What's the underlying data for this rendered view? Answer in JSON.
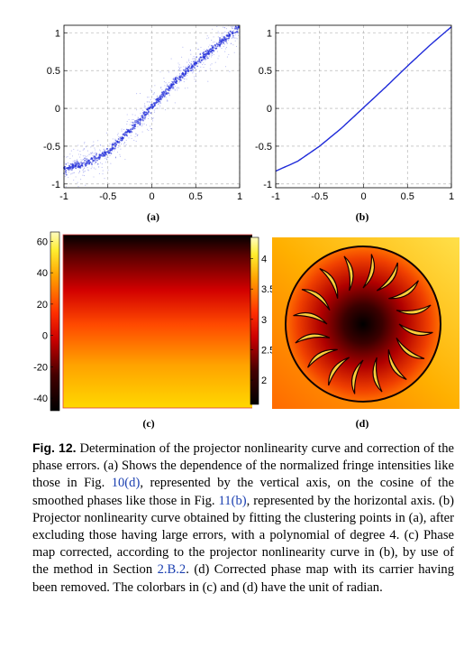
{
  "figure": {
    "panels": {
      "a": {
        "label": "(a)"
      },
      "b": {
        "label": "(b)"
      },
      "c": {
        "label": "(c)"
      },
      "d": {
        "label": "(d)"
      }
    },
    "caption": {
      "fig_label": "Fig. 12.",
      "t1": " Determination of the projector nonlinearity curve and correction of the phase errors. (a) Shows the dependence of the normalized fringe intensities like those in Fig. ",
      "ref1": "10(d)",
      "t2": ", represented by the vertical axis, on the cosine of the smoothed phases like those in Fig. ",
      "ref2": "11(b)",
      "t3": ", represented by the horizontal axis. (b) Projector nonlinearity curve obtained by fitting the clustering points in (a), after excluding those having large errors, with a polynomial of degree 4. (c) Phase map corrected, according to the projector nonlinearity curve in (b), by use of the method in Section ",
      "ref3": "2.B.2",
      "t4": ". (d) Corrected phase map with its carrier having been removed. The colorbars in (c) and (d) have the unit of radian."
    }
  },
  "chart_data": [
    {
      "type": "scatter",
      "x_ticks": [
        "-1",
        "-0.5",
        "0",
        "0.5",
        "1"
      ],
      "y_ticks": [
        "1",
        "0.5",
        "0",
        "-0.5",
        "-1"
      ],
      "xlim": [
        -1,
        1
      ],
      "ylim": [
        -1.05,
        1.1
      ],
      "grid": true,
      "color": "#1f2bd9",
      "series": [
        {
          "x": [
            -1,
            -0.75,
            -0.5,
            -0.25,
            0,
            0.25,
            0.5,
            0.75,
            1
          ],
          "y": [
            -0.8,
            -0.73,
            -0.57,
            -0.3,
            0.02,
            0.33,
            0.6,
            0.85,
            1.08
          ]
        }
      ]
    },
    {
      "type": "line",
      "x_ticks": [
        "-1",
        "-0.5",
        "0",
        "0.5",
        "1"
      ],
      "y_ticks": [
        "1",
        "0.5",
        "0",
        "-0.5",
        "-1"
      ],
      "xlim": [
        -1,
        1
      ],
      "ylim": [
        -1.05,
        1.1
      ],
      "grid": true,
      "color": "#1f2bd9",
      "series": [
        {
          "x": [
            -1,
            -0.75,
            -0.5,
            -0.25,
            0,
            0.25,
            0.5,
            0.75,
            1
          ],
          "y": [
            -0.83,
            -0.7,
            -0.5,
            -0.26,
            0.01,
            0.28,
            0.56,
            0.83,
            1.08
          ]
        }
      ]
    },
    {
      "type": "heatmap",
      "colormap": "hot",
      "colorbar_ticks": [
        "60",
        "40",
        "20",
        "0",
        "-20",
        "-40"
      ],
      "colorbar_range": [
        -48,
        66
      ]
    },
    {
      "type": "heatmap",
      "colormap": "hot",
      "colorbar_ticks": [
        "4",
        "3.5",
        "3",
        "2.5",
        "2"
      ],
      "colorbar_range": [
        1.6,
        4.35
      ]
    }
  ]
}
